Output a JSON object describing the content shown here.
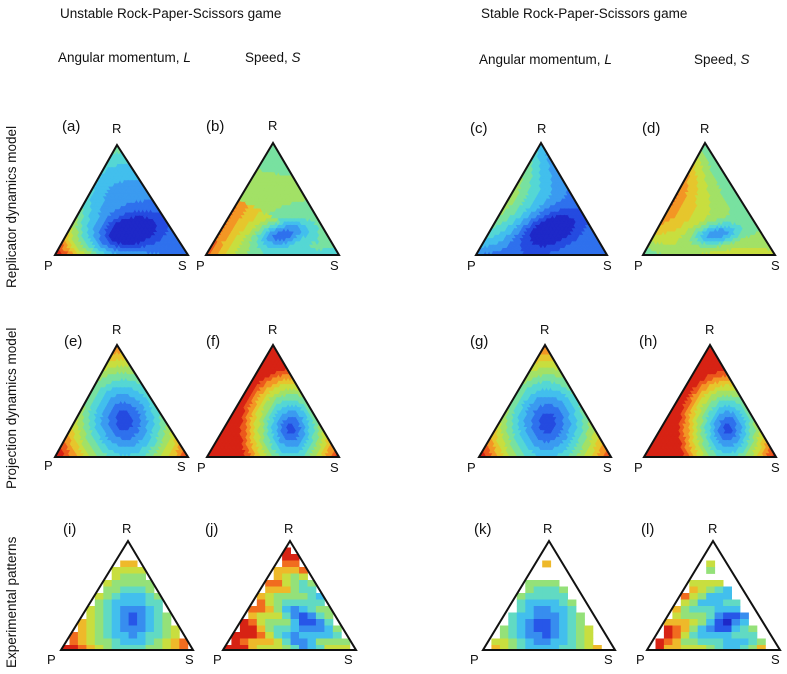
{
  "titles": {
    "unstable": "Unstable Rock-Paper-Scissors game",
    "stable": "Stable Rock-Paper-Scissors game"
  },
  "columns": {
    "angular_prefix": "Angular momentum, ",
    "angular_symbol": "L",
    "speed_prefix": "Speed, ",
    "speed_symbol": "S"
  },
  "rows": {
    "replicator": "Replicator dynamics model",
    "projection": "Projection dynamics model",
    "experimental": "Experimental patterns"
  },
  "vertices": {
    "top": "R",
    "left": "P",
    "right": "S"
  },
  "panels": [
    {
      "id": "a",
      "label": "(a)",
      "kind": "smooth",
      "color_min": "#1e3ee0",
      "color_max": "#e8301a"
    },
    {
      "id": "b",
      "label": "(b)",
      "kind": "smooth"
    },
    {
      "id": "c",
      "label": "(c)",
      "kind": "smooth"
    },
    {
      "id": "d",
      "label": "(d)",
      "kind": "smooth"
    },
    {
      "id": "e",
      "label": "(e)",
      "kind": "smooth"
    },
    {
      "id": "f",
      "label": "(f)",
      "kind": "smooth"
    },
    {
      "id": "g",
      "label": "(g)",
      "kind": "smooth"
    },
    {
      "id": "h",
      "label": "(h)",
      "kind": "smooth"
    },
    {
      "id": "i",
      "label": "(i)",
      "kind": "pixelated"
    },
    {
      "id": "j",
      "label": "(j)",
      "kind": "pixelated"
    },
    {
      "id": "k",
      "label": "(k)",
      "kind": "pixelated"
    },
    {
      "id": "l",
      "label": "(l)",
      "kind": "pixelated"
    }
  ]
}
